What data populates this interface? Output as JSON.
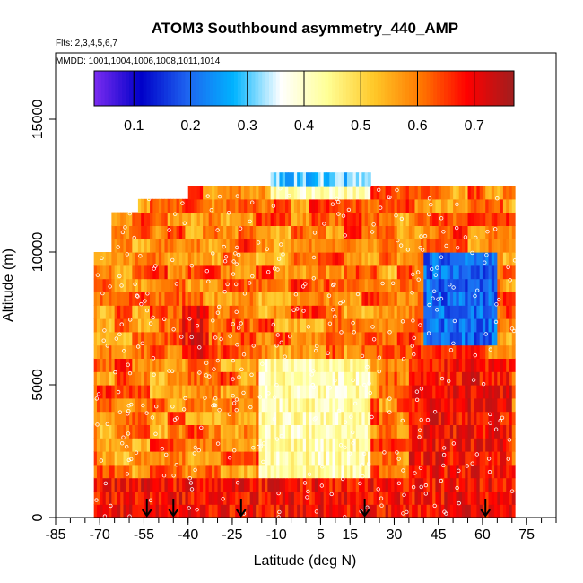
{
  "chart_data": {
    "type": "heatmap",
    "title": "ATOM3 Southbound asymmetry_440_AMP",
    "flights_label": "Flts: 2,3,4,5,6,7",
    "dates_label": "MMDD: 1001,1004,1006,1008,1011,1014",
    "xlabel": "Latitude (deg N)",
    "ylabel": "Altitude (m)",
    "xlim": [
      -85,
      85
    ],
    "ylim": [
      0,
      17500
    ],
    "x_tick_labels": [
      "-85",
      "-70",
      "-55",
      "-40",
      "-25",
      "-10",
      "5",
      "15",
      "30",
      "45",
      "60",
      "75"
    ],
    "x_tick_values": [
      -85,
      -70,
      -55,
      -40,
      -25,
      -10,
      5,
      15,
      30,
      45,
      60,
      75
    ],
    "y_tick_labels": [
      "0",
      "5000",
      "10000",
      "15000"
    ],
    "y_tick_values": [
      0,
      5000,
      10000,
      15000
    ],
    "colorbar": {
      "range": [
        0.03,
        0.77
      ],
      "tick_labels": [
        "0.1",
        "0.2",
        "0.3",
        "0.4",
        "0.5",
        "0.6",
        "0.7"
      ],
      "tick_values": [
        0.1,
        0.2,
        0.3,
        0.4,
        0.5,
        0.6,
        0.7
      ],
      "colors": [
        "#7b2cf0",
        "#0000c8",
        "#1e64f0",
        "#00b4ff",
        "#ffffff",
        "#ffff96",
        "#ffc828",
        "#ff7800",
        "#ff0000",
        "#a01e1e"
      ]
    },
    "altitude_bin_m": 500,
    "latitude_range_m": [
      -72,
      71
    ],
    "arrows_latitude": [
      -54,
      -45,
      -22,
      20,
      61
    ],
    "value_field_description_none": "",
    "base_value": 0.6,
    "features": [
      {
        "lat": [
          -12,
          22
        ],
        "alt": [
          12500,
          13000
        ],
        "value": 0.3
      },
      {
        "lat": [
          -12,
          22
        ],
        "alt": [
          12000,
          12500
        ],
        "value": 0.42
      },
      {
        "lat": [
          40,
          65
        ],
        "alt": [
          6500,
          10000
        ],
        "value": 0.2
      },
      {
        "lat": [
          -16,
          22
        ],
        "alt": [
          1500,
          6000
        ],
        "value": 0.42
      },
      {
        "lat": [
          -50,
          -20
        ],
        "alt": [
          6500,
          8000
        ],
        "value": 0.62
      },
      {
        "lat": [
          -42,
          -33
        ],
        "alt": [
          6000,
          8000
        ],
        "value": 0.7
      },
      {
        "lat": [
          35,
          70
        ],
        "alt": [
          1000,
          6000
        ],
        "value": 0.69
      },
      {
        "lat": [
          -72,
          71
        ],
        "alt": [
          0,
          1500
        ],
        "value": 0.69
      }
    ]
  }
}
